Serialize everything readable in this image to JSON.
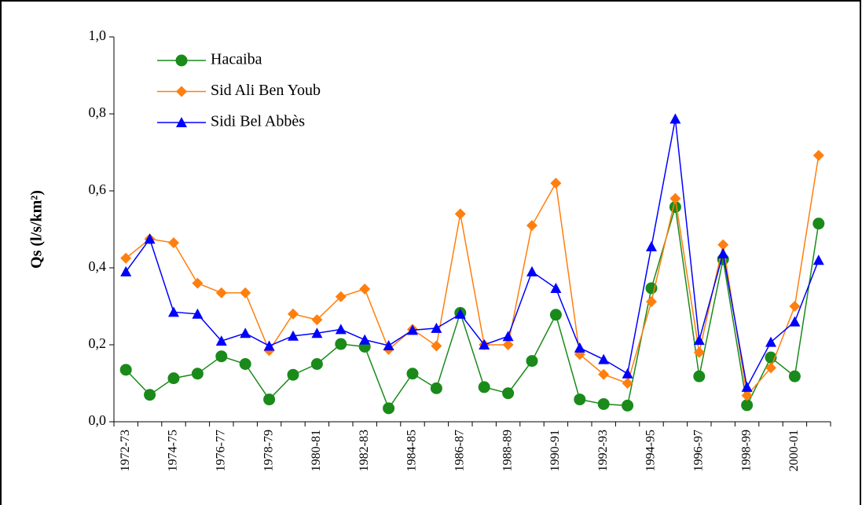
{
  "chart_data": {
    "type": "line",
    "y_label": "Qs (l/s/km²)",
    "categories": [
      "1972-73",
      null,
      "1974-75",
      null,
      "1976-77",
      null,
      "1978-79",
      null,
      "1980-81",
      null,
      "1982-83",
      null,
      "1984-85",
      null,
      "1986-87",
      null,
      "1988-89",
      null,
      "1990-91",
      null,
      "1992-93",
      null,
      "1994-95",
      null,
      "1996-97",
      null,
      "1998-99",
      null,
      "2000-01",
      null
    ],
    "series": [
      {
        "name": "Hacaiba",
        "color": "#1a8a1a",
        "marker": "circle",
        "values": [
          0.135,
          0.07,
          0.113,
          0.125,
          0.17,
          0.15,
          0.058,
          0.122,
          0.15,
          0.202,
          0.195,
          0.035,
          0.125,
          0.087,
          0.283,
          0.09,
          0.074,
          0.158,
          0.278,
          0.058,
          0.046,
          0.042,
          0.347,
          0.558,
          0.118,
          0.422,
          0.043,
          0.167,
          0.118,
          0.515
        ]
      },
      {
        "name": "Sid Ali Ben Youb",
        "color": "#ff7f0e",
        "marker": "diamond",
        "values": [
          0.425,
          0.475,
          0.465,
          0.36,
          0.335,
          0.335,
          0.185,
          0.28,
          0.265,
          0.325,
          0.345,
          0.188,
          0.24,
          0.197,
          0.54,
          0.2,
          0.2,
          0.51,
          0.62,
          0.175,
          0.123,
          0.1,
          0.312,
          0.58,
          0.18,
          0.46,
          0.068,
          0.14,
          0.3,
          0.692
        ]
      },
      {
        "name": "Sidi Bel Abbès",
        "color": "#0000ff",
        "marker": "triangle",
        "values": [
          0.39,
          0.475,
          0.285,
          0.28,
          0.21,
          0.23,
          0.197,
          0.223,
          0.23,
          0.24,
          0.213,
          0.198,
          0.238,
          0.243,
          0.28,
          0.2,
          0.222,
          0.39,
          0.347,
          0.192,
          0.162,
          0.125,
          0.455,
          0.787,
          0.212,
          0.437,
          0.09,
          0.207,
          0.26,
          0.42
        ]
      }
    ],
    "ylim": [
      0,
      1
    ],
    "yticks": [
      {
        "value": 0,
        "label": "0,0"
      },
      {
        "value": 0.2,
        "label": "0,2"
      },
      {
        "value": 0.4,
        "label": "0,4"
      },
      {
        "value": 0.6,
        "label": "0,6"
      },
      {
        "value": 0.8,
        "label": "0,8"
      },
      {
        "value": 1,
        "label": "1,0"
      }
    ],
    "legend": "upper-left"
  }
}
